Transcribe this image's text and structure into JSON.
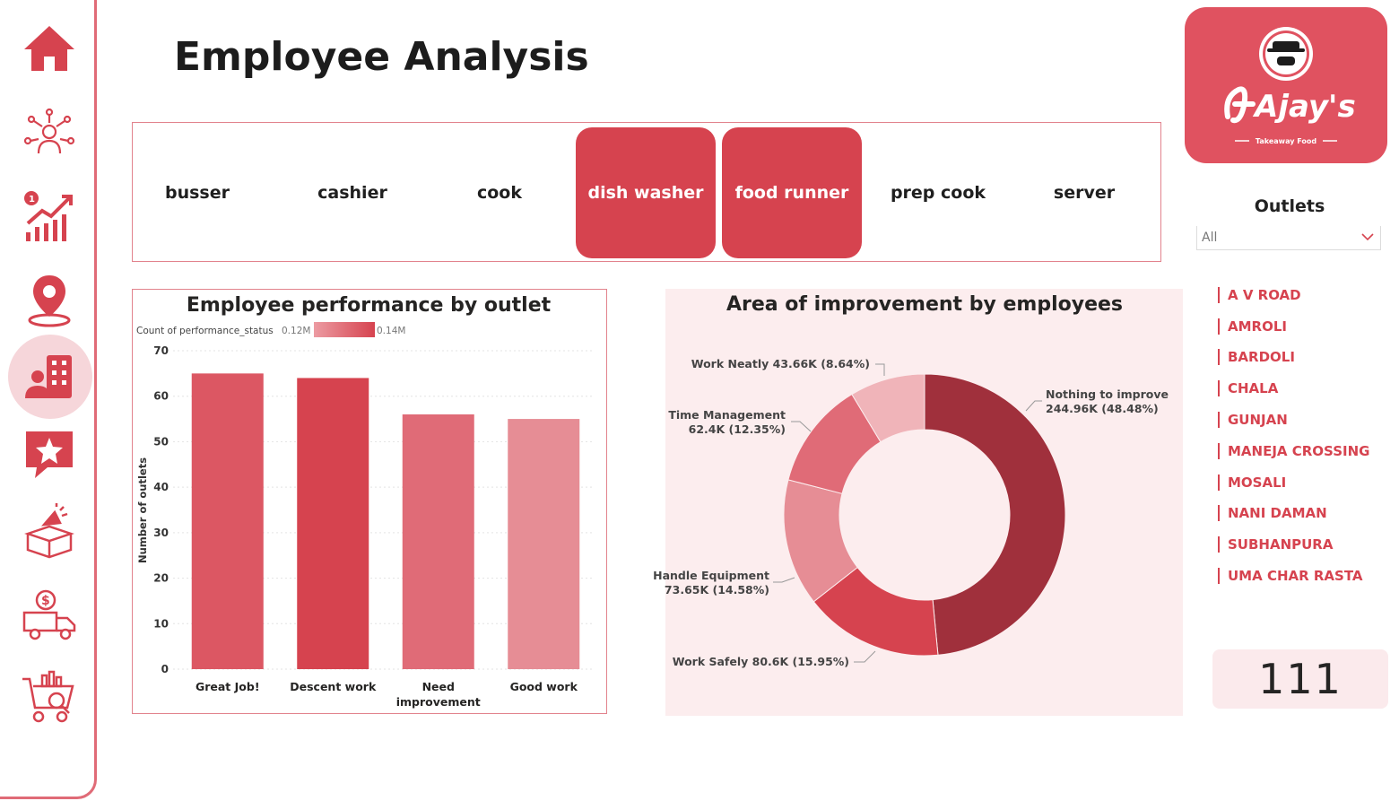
{
  "page": {
    "title": "Employee Analysis"
  },
  "roles": [
    {
      "label": "busser",
      "selected": false
    },
    {
      "label": "cashier",
      "selected": false
    },
    {
      "label": "cook",
      "selected": false
    },
    {
      "label": "dish washer",
      "selected": true
    },
    {
      "label": "food runner",
      "selected": true
    },
    {
      "label": "prep cook",
      "selected": false
    },
    {
      "label": "server",
      "selected": false
    }
  ],
  "logo": {
    "brand": "Ajay's",
    "tagline": "Takeaway Food"
  },
  "outlets": {
    "title": "Outlets",
    "selected": "All",
    "items": [
      "A V ROAD",
      "AMROLI",
      "BARDOLI",
      "CHALA",
      "GUNJAN",
      "MANEJA CROSSING",
      "MOSALI",
      "NANI DAMAN",
      "SUBHANPURA",
      "UMA CHAR RASTA"
    ]
  },
  "card": {
    "value": "111"
  },
  "colors": {
    "accent": "#d6434f",
    "accent_dark": "#9f2f3b",
    "accent_light": "#e8939b",
    "panel_bg": "#fcedee"
  },
  "sidebar": {
    "items": [
      {
        "icon": "home-icon"
      },
      {
        "icon": "network-person-icon"
      },
      {
        "icon": "growth-chart-icon"
      },
      {
        "icon": "location-pin-icon"
      },
      {
        "icon": "employee-building-icon",
        "active": true
      },
      {
        "icon": "star-review-icon"
      },
      {
        "icon": "marketing-box-icon"
      },
      {
        "icon": "delivery-truck-icon"
      },
      {
        "icon": "shopping-cart-icon"
      }
    ]
  },
  "chart_data": [
    {
      "type": "bar",
      "title": "Employee performance by outlet",
      "legend": {
        "label": "Count of performance_status",
        "min": "0.12M",
        "max": "0.14M"
      },
      "categories": [
        "Great Job!",
        "Descent work",
        "Need improvement",
        "Good work"
      ],
      "values": [
        65,
        64,
        56,
        55
      ],
      "colors": [
        "#dc5763",
        "#d6434f",
        "#e06b77",
        "#e68d95"
      ],
      "xlabel": "",
      "ylabel": "Number of outlets",
      "ylim": [
        0,
        70
      ],
      "yticks": [
        0,
        10,
        20,
        30,
        40,
        50,
        60,
        70
      ],
      "grid": true
    },
    {
      "type": "pie",
      "title": "Area of improvement by employees",
      "slices": [
        {
          "name": "Nothing to improve",
          "value": 244.96,
          "label": "Nothing to improve",
          "value_label": "244.96K (48.48%)",
          "color": "#a0303c"
        },
        {
          "name": "Work Safely",
          "value": 80.6,
          "label": "Work Safely 80.6K (15.95%)",
          "color": "#d6434f"
        },
        {
          "name": "Handle Equipment",
          "value": 73.65,
          "label": "Handle Equipment",
          "value_label": "73.65K (14.58%)",
          "color": "#e68d95"
        },
        {
          "name": "Time Management",
          "value": 62.4,
          "label": "Time Management",
          "value_label": "62.4K (12.35%)",
          "color": "#e06b77"
        },
        {
          "name": "Work Neatly",
          "value": 43.66,
          "label": "Work Neatly 43.66K (8.64%)",
          "color": "#f0b4b9"
        }
      ]
    }
  ]
}
